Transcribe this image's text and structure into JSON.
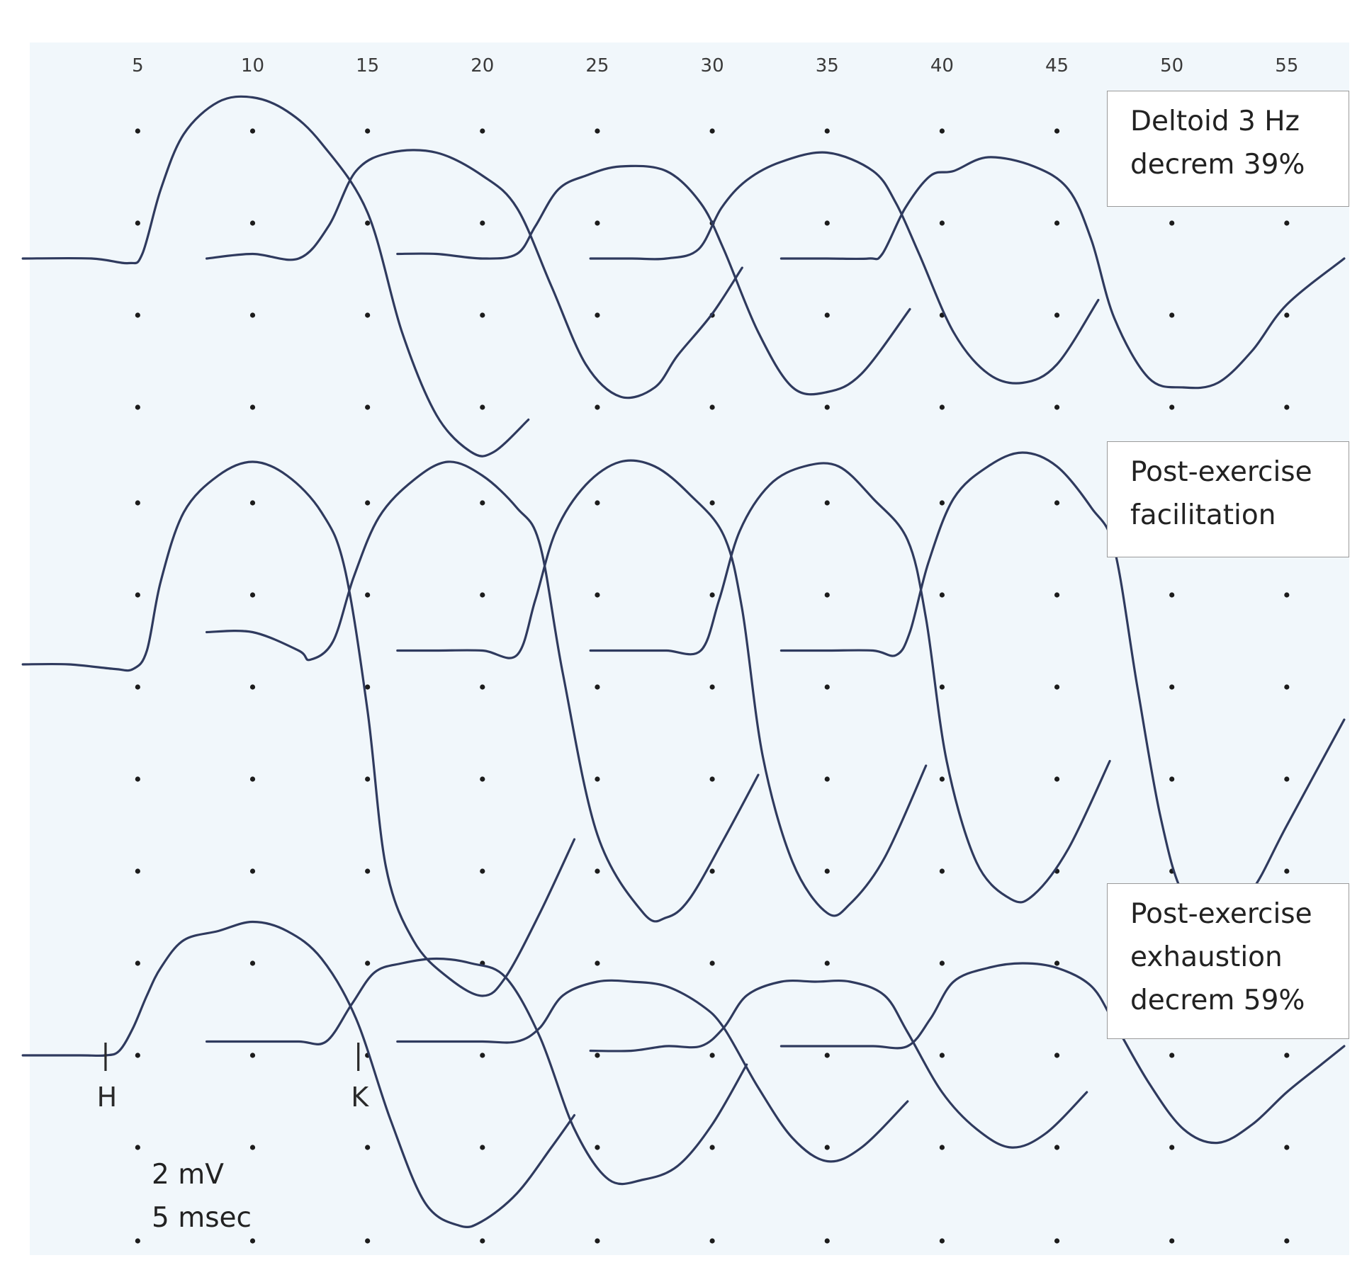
{
  "chart_data": {
    "type": "line",
    "title": "",
    "xlabel": "",
    "ylabel": "",
    "x_ticks": [
      5,
      10,
      15,
      20,
      25,
      30,
      35,
      40,
      45,
      50,
      55
    ],
    "xlim": [
      0,
      57.5
    ],
    "grid": "dotted",
    "panels": [
      {
        "label_lines": [
          "Deltoid 3 Hz",
          "decrem 39%"
        ],
        "series": [
          {
            "name": "",
            "x": [
              0,
              3,
              4.6,
              5.2,
              6,
              7,
              8.5,
              10,
              11.5,
              13,
              15,
              16.5,
              18,
              19.5,
              20.5,
              22
            ],
            "y": [
              0,
              0,
              -0.1,
              0.1,
              1.5,
              2.7,
              3.4,
              3.5,
              3.2,
              2.5,
              1.0,
              -1.6,
              -3.4,
              -4.2,
              -4.2,
              -3.5
            ]
          },
          {
            "name": "",
            "x": [
              8,
              10,
              12,
              13.3,
              14.5,
              16,
              18,
              20,
              21.5,
              23,
              24.5,
              26,
              27.5,
              28.5,
              30,
              31.3
            ],
            "y": [
              0,
              0.1,
              0,
              0.7,
              1.9,
              2.3,
              2.3,
              1.8,
              1.1,
              -0.6,
              -2.3,
              -3.0,
              -2.8,
              -2.1,
              -1.2,
              -0.2
            ]
          },
          {
            "name": "",
            "x": [
              16.3,
              18,
              20,
              21.5,
              22.3,
              23.3,
              24.5,
              26,
              28,
              29.5,
              30.5,
              32,
              33.5,
              35,
              36.5,
              38.6
            ],
            "y": [
              0.1,
              0.1,
              0,
              0.1,
              0.7,
              1.5,
              1.8,
              2.0,
              1.9,
              1.2,
              0.2,
              -1.6,
              -2.8,
              -2.9,
              -2.5,
              -1.1
            ]
          },
          {
            "name": "",
            "x": [
              24.7,
              26.5,
              28,
              29.4,
              30.4,
              31.5,
              33,
              35,
              37,
              38,
              39,
              40.5,
              42,
              43.5,
              45,
              46.8
            ],
            "y": [
              0,
              0,
              0,
              0.2,
              1.1,
              1.7,
              2.1,
              2.3,
              1.9,
              1.2,
              0.1,
              -1.6,
              -2.5,
              -2.7,
              -2.3,
              -0.9
            ]
          },
          {
            "name": "",
            "x": [
              33,
              35,
              36.8,
              37.4,
              38.4,
              39.5,
              40.5,
              42,
              44,
              45.5,
              46.5,
              47.5,
              49,
              50.5,
              52,
              53.5,
              55,
              57.5
            ],
            "y": [
              0,
              0,
              0,
              0.1,
              1.1,
              1.8,
              1.9,
              2.2,
              2.0,
              1.5,
              0.4,
              -1.3,
              -2.6,
              -2.8,
              -2.7,
              -2.0,
              -1.0,
              0.0
            ]
          }
        ]
      },
      {
        "label_lines": [
          "Post-exercise",
          "facilitation"
        ],
        "series": [
          {
            "name": "",
            "x": [
              0,
              2,
              4,
              4.8,
              5.4,
              6,
              7,
              8.5,
              10,
              11.5,
              13,
              14,
              15,
              15.8,
              17,
              18.5,
              20,
              21,
              22.5,
              24
            ],
            "y": [
              0,
              0,
              -0.1,
              -0.1,
              0.3,
              1.8,
              3.3,
              4.1,
              4.4,
              4.1,
              3.3,
              2.1,
              -1.0,
              -4.4,
              -6.0,
              -6.8,
              -7.2,
              -6.8,
              -5.4,
              -3.8
            ]
          },
          {
            "name": "",
            "x": [
              8,
              10,
              12,
              12.5,
              13.5,
              14.4,
              15.5,
              17,
              18.5,
              20,
              21.5,
              22.5,
              23.5,
              25,
              27,
              28,
              29,
              30.5,
              32
            ],
            "y": [
              0.7,
              0.7,
              0.3,
              0.1,
              0.5,
              1.9,
              3.2,
              4.0,
              4.4,
              4.1,
              3.4,
              2.6,
              -0.2,
              -3.7,
              -5.4,
              -5.5,
              -5.1,
              -3.8,
              -2.4
            ]
          },
          {
            "name": "",
            "x": [
              16.3,
              18,
              20,
              21.5,
              22.3,
              23.2,
              24.5,
              26,
              27.5,
              29,
              30.5,
              31.3,
              32.2,
              33.5,
              35,
              36,
              37.5,
              39.3
            ],
            "y": [
              0.3,
              0.3,
              0.3,
              0.2,
              1.4,
              2.9,
              3.9,
              4.4,
              4.3,
              3.7,
              2.8,
              1.2,
              -2.0,
              -4.3,
              -5.4,
              -5.2,
              -4.2,
              -2.2
            ]
          },
          {
            "name": "",
            "x": [
              24.7,
              26.5,
              28,
              29.5,
              30.3,
              31.2,
              32.5,
              34,
              35.5,
              37,
              38.5,
              39.3,
              40.2,
              41.5,
              43,
              44,
              45.5,
              47.3
            ],
            "y": [
              0.3,
              0.3,
              0.3,
              0.3,
              1.4,
              2.9,
              3.9,
              4.3,
              4.3,
              3.6,
              2.7,
              1.0,
              -2.1,
              -4.3,
              -5.1,
              -5.0,
              -4.0,
              -2.1
            ]
          },
          {
            "name": "",
            "x": [
              33,
              35,
              37,
              38,
              38.6,
              39.4,
              40.5,
              42,
              43.5,
              45,
              46.5,
              47.5,
              48.5,
              49.5,
              50.5,
              52,
              53.5,
              55,
              57.5
            ],
            "y": [
              0.3,
              0.3,
              0.3,
              0.2,
              0.7,
              2.2,
              3.6,
              4.3,
              4.6,
              4.3,
              3.4,
              2.5,
              -0.5,
              -3.3,
              -5.0,
              -5.6,
              -4.9,
              -3.5,
              -1.2
            ]
          }
        ]
      },
      {
        "label_lines": [
          "Post-exercise",
          "exhaustion",
          "decrem 59%"
        ],
        "series": [
          {
            "name": "",
            "x": [
              0,
              2.5,
              3.6,
              4.2,
              4.8,
              5.4,
              6,
              7,
              8.5,
              10,
              11.5,
              13,
              14.5,
              16,
              17.5,
              19,
              20,
              21.5,
              23,
              24
            ],
            "y": [
              0,
              0,
              0,
              0.1,
              0.6,
              1.3,
              1.9,
              2.5,
              2.7,
              2.9,
              2.7,
              2.1,
              0.8,
              -1.4,
              -3.2,
              -3.7,
              -3.6,
              -3.0,
              -2.0,
              -1.3
            ]
          },
          {
            "name": "",
            "x": [
              8,
              10,
              12,
              13.2,
              14.3,
              15.3,
              16.5,
              18,
              19.5,
              21,
              22.5,
              24,
              25.5,
              27,
              28.5,
              30,
              31.5
            ],
            "y": [
              0.3,
              0.3,
              0.3,
              0.3,
              1.1,
              1.8,
              2.0,
              2.1,
              2.0,
              1.7,
              0.4,
              -1.6,
              -2.7,
              -2.7,
              -2.4,
              -1.5,
              -0.2
            ]
          },
          {
            "name": "",
            "x": [
              16.3,
              18,
              20,
              21.5,
              22.5,
              23.5,
              25,
              26.5,
              28,
              29.5,
              30.5,
              32,
              33.5,
              35,
              36.5,
              38.5
            ],
            "y": [
              0.3,
              0.3,
              0.3,
              0.3,
              0.6,
              1.3,
              1.6,
              1.6,
              1.5,
              1.1,
              0.6,
              -0.7,
              -1.8,
              -2.3,
              -2.0,
              -1.0
            ]
          },
          {
            "name": "",
            "x": [
              24.7,
              26.5,
              28,
              29.5,
              30.5,
              31.5,
              33,
              34.5,
              36,
              37.5,
              38.5,
              40,
              41.5,
              43,
              44.5,
              46.3
            ],
            "y": [
              0.1,
              0.1,
              0.2,
              0.2,
              0.6,
              1.3,
              1.6,
              1.6,
              1.6,
              1.3,
              0.5,
              -0.8,
              -1.6,
              -2.0,
              -1.7,
              -0.8
            ]
          },
          {
            "name": "",
            "x": [
              33,
              35,
              37,
              38.5,
              39.5,
              40.5,
              42,
              43.5,
              45,
              46.5,
              47.5,
              49,
              50.5,
              52,
              53.5,
              55,
              56.5,
              57.5
            ],
            "y": [
              0.2,
              0.2,
              0.2,
              0.2,
              0.8,
              1.6,
              1.9,
              2.0,
              1.9,
              1.5,
              0.7,
              -0.6,
              -1.6,
              -1.9,
              -1.5,
              -0.8,
              -0.2,
              0.2
            ]
          }
        ]
      }
    ],
    "markers": [
      {
        "label": "H",
        "x": 3.6
      },
      {
        "label": "K",
        "x": 14.6
      }
    ],
    "scale_labels": {
      "voltage": "2 mV",
      "time": "5 msec"
    }
  }
}
